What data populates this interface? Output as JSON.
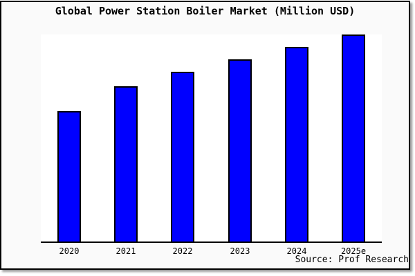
{
  "chart_data": {
    "type": "bar",
    "title": "Global Power Station Boiler Market (Million USD)",
    "categories": [
      "2020",
      "2021",
      "2022",
      "2023",
      "2024",
      "2025e"
    ],
    "values": [
      63,
      75,
      82,
      88,
      94,
      100
    ],
    "ylim": [
      0,
      100
    ],
    "value_note": "y-axis is unlabeled (no ticks or gridlines); values are relative bar heights estimated from pixels with 2025e = 100",
    "xlabel": "",
    "ylabel": "",
    "legend": "none",
    "grid": false,
    "bar_color": "#0000ff",
    "bar_outline_color": "#000000",
    "axis_color": "#000000",
    "plot_background": "#ffffff",
    "frame_background": "#fafafa",
    "frame_border_color": "#000000",
    "source": "Source: Prof Research"
  }
}
